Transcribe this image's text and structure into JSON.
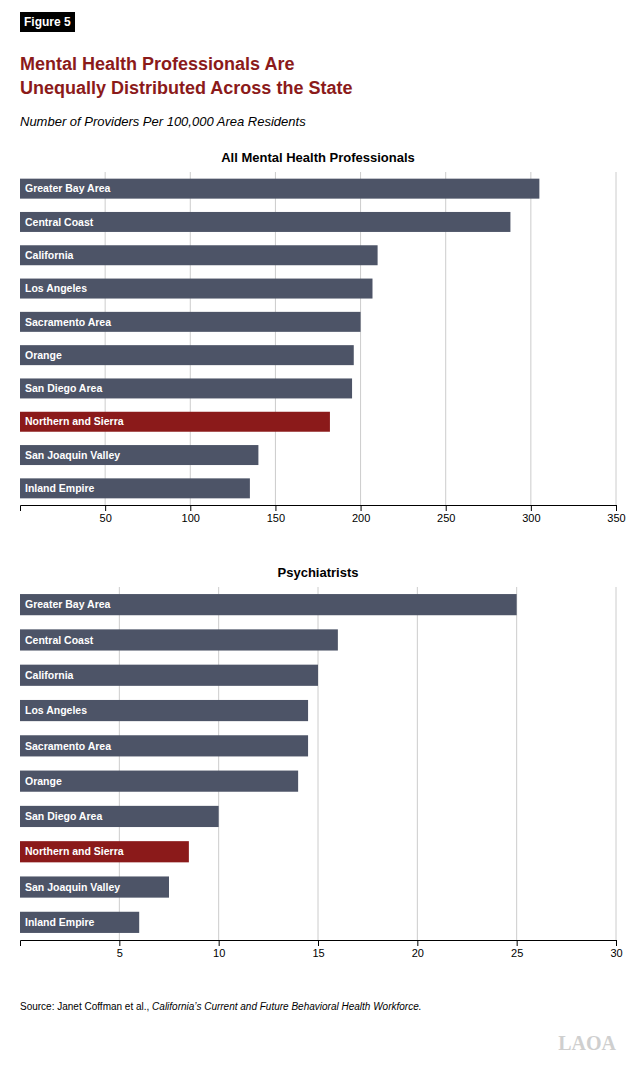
{
  "title": "Mental Health Professionals Are\nUnequally Distributed Across the State",
  "subtitle": "Number of Providers Per 100,000 Area Residents",
  "annotations": [
    "Figure 5",
    "Source: Janet Coffman et al., ",
    "California’s Current and Future Behavioral Health Workforce.",
    "LAOA"
  ],
  "chart_data": [
    {
      "type": "bar",
      "orientation": "horizontal",
      "title": "All Mental Health Professionals",
      "categories": [
        "Greater Bay Area",
        "Central Coast",
        "California",
        "Los Angeles",
        "Sacramento Area",
        "Orange",
        "San Diego Area",
        "Northern and Sierra",
        "San Joaquin Valley",
        "Inland Empire"
      ],
      "values": [
        305,
        288,
        210,
        207,
        200,
        196,
        195,
        182,
        140,
        135
      ],
      "colors": [
        "#4d5467",
        "#4d5467",
        "#4d5467",
        "#4d5467",
        "#4d5467",
        "#4d5467",
        "#4d5467",
        "#8B1A1A",
        "#4d5467",
        "#4d5467"
      ],
      "xlim": [
        0,
        350
      ],
      "xticks": [
        50,
        100,
        150,
        200,
        250,
        300,
        350
      ],
      "grid": true,
      "tick_labels": "x"
    },
    {
      "type": "bar",
      "orientation": "horizontal",
      "title": "Psychiatrists",
      "categories": [
        "Greater Bay Area",
        "Central Coast",
        "California",
        "Los Angeles",
        "Sacramento Area",
        "Orange",
        "San Diego Area",
        "Northern and Sierra",
        "San Joaquin Valley",
        "Inland Empire"
      ],
      "values": [
        25,
        16,
        15,
        14.5,
        14.5,
        14,
        10,
        8.5,
        7.5,
        6
      ],
      "colors": [
        "#4d5467",
        "#4d5467",
        "#4d5467",
        "#4d5467",
        "#4d5467",
        "#4d5467",
        "#4d5467",
        "#8B1A1A",
        "#4d5467",
        "#4d5467"
      ],
      "xlim": [
        0,
        30
      ],
      "xticks": [
        5,
        10,
        15,
        20,
        25,
        30
      ],
      "grid": true,
      "tick_labels": "x"
    }
  ]
}
